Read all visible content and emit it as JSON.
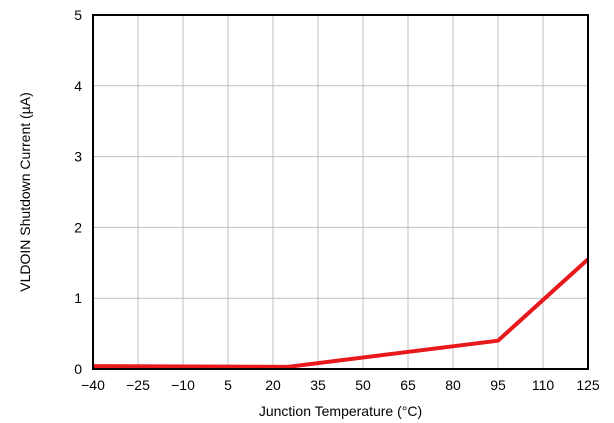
{
  "chart_data": {
    "type": "line",
    "title": "",
    "xlabel": "Junction Temperature (°C)",
    "ylabel": "VLDOIN Shutdown Current (µA)",
    "xlim": [
      -40,
      125
    ],
    "ylim": [
      0,
      5
    ],
    "x_ticks": [
      -40,
      -25,
      -10,
      5,
      20,
      35,
      50,
      65,
      80,
      95,
      110,
      125
    ],
    "x_tick_labels": [
      "−40",
      "−25",
      "−10",
      "5",
      "20",
      "35",
      "50",
      "65",
      "80",
      "95",
      "110",
      "125"
    ],
    "y_ticks": [
      0,
      1,
      2,
      3,
      4,
      5
    ],
    "y_tick_labels": [
      "0",
      "1",
      "2",
      "3",
      "4",
      "5"
    ],
    "grid": true,
    "legend": "none",
    "series": [
      {
        "color": "#e8191d",
        "x": [
          -40,
          25,
          95,
          125
        ],
        "y": [
          0.04,
          0.03,
          0.4,
          1.55
        ]
      }
    ]
  }
}
